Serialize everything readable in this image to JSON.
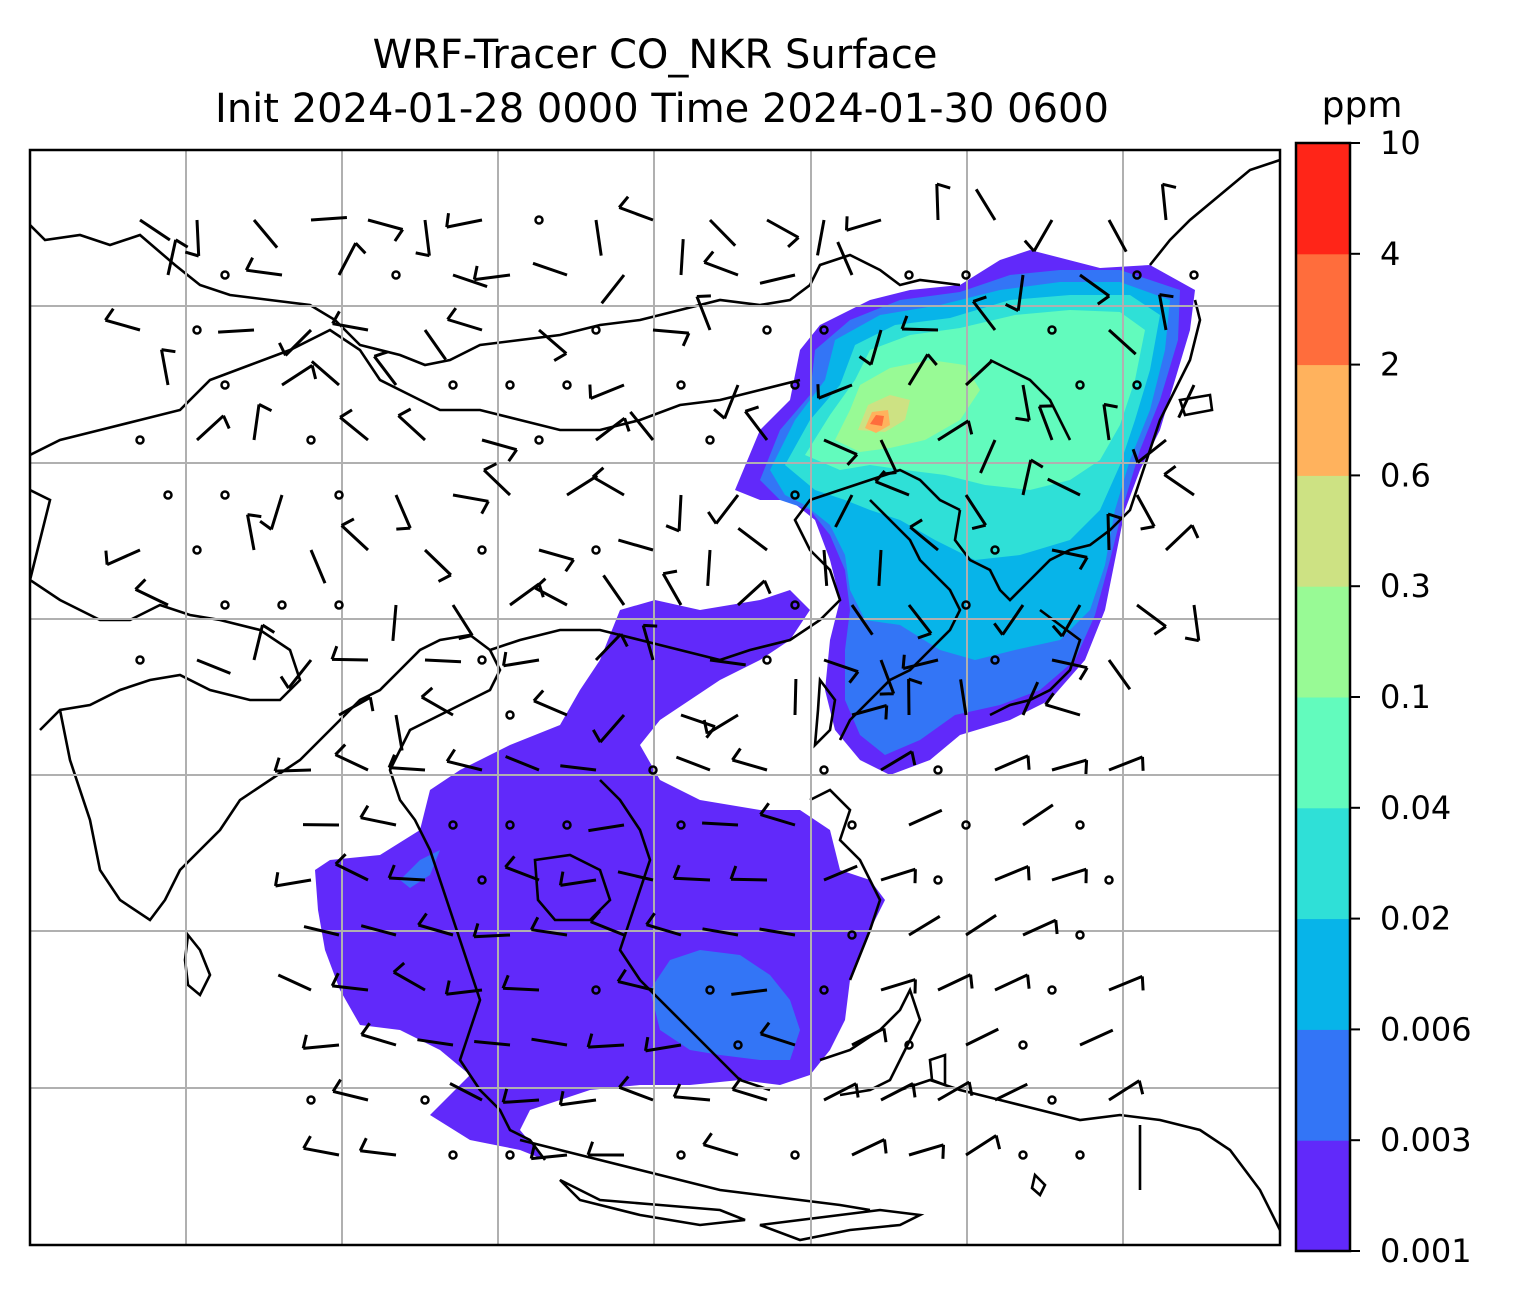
{
  "title": {
    "line1": "WRF-Tracer CO_NKR Surface",
    "line2": "Init 2024-01-28 0000 Time 2024-01-30 0600"
  },
  "colorbar": {
    "unit": "ppm",
    "levels": [
      "0.001",
      "0.003",
      "0.006",
      "0.02",
      "0.04",
      "0.1",
      "0.3",
      "0.6",
      "2",
      "4",
      "10"
    ],
    "colors": [
      "#6129fa",
      "#3375f6",
      "#07b4e9",
      "#2fe0d7",
      "#62fbbd",
      "#98fa95",
      "#cde283",
      "#ffb25d",
      "#ff6d3c",
      "#ff2518"
    ]
  },
  "map": {
    "grid": true,
    "wind_barbs": true,
    "regions": [
      {
        "name": "north-china-korea-japan-plume",
        "level_index": 4
      },
      {
        "name": "southeast-asia-plume",
        "level_index": 0
      }
    ]
  }
}
